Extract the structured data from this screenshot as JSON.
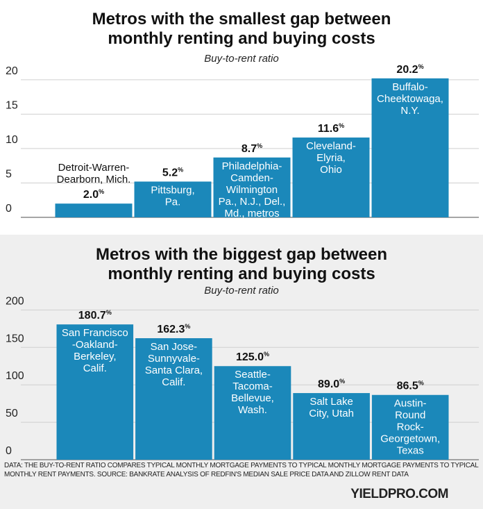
{
  "chart_data": [
    {
      "type": "bar",
      "title": "Metros with the smallest gap between monthly renting and buying costs",
      "subtitle": "Buy-to-rent ratio",
      "categories": [
        "Detroit-Warren-\nDearborn, Mich.",
        "Pittsburg,\nPa.",
        "Philadelphia-\nCamden-\nWilmington\nPa., N.J., Del.,\nMd., metros",
        "Cleveland-\nElyria,\nOhio",
        "Buffalo-\nCheektowaga,\nN.Y."
      ],
      "values": [
        2.0,
        5.2,
        8.7,
        11.6,
        20.2
      ],
      "value_labels": [
        "2.0%",
        "5.2%",
        "8.7%",
        "11.6%",
        "20.2%"
      ],
      "color": "#1b88ba",
      "ylim": [
        0,
        22
      ],
      "yticks": [
        0,
        5,
        10,
        15,
        20
      ],
      "grid": true
    },
    {
      "type": "bar",
      "title": "Metros with the biggest gap between monthly renting and buying costs",
      "subtitle": "Buy-to-rent ratio",
      "categories": [
        "San Francisco\n-Oakland-\nBerkeley,\nCalif.",
        "San Jose-\nSunnyvale-\nSanta Clara,\nCalif.",
        "Seattle-\nTacoma-\nBellevue,\nWash.",
        "Salt Lake\nCity, Utah",
        "Austin-\nRound\nRock-\nGeorgetown,\nTexas"
      ],
      "values": [
        180.7,
        162.3,
        125.0,
        89.0,
        86.5
      ],
      "value_labels": [
        "180.7%",
        "162.3%",
        "125.0%",
        "89.0%",
        "86.5%"
      ],
      "color": "#1b88ba",
      "ylim": [
        0,
        205
      ],
      "yticks": [
        0,
        50,
        100,
        150,
        200
      ],
      "grid": true
    }
  ],
  "footer": {
    "note": "DATA: THE BUY-TO-RENT RATIO COMPARES TYPICAL MONTHLY MORTGAGE PAYMENTS TO TYPICAL MONTHLY MORTGAGE PAYMENTS TO TYPICAL MONTHLY RENT PAYMENTS. SOURCE: BANKRATE ANALYSIS OF REDFIN'S MEDIAN SALE PRICE DATA AND ZILLOW RENT DATA",
    "brand": "YIELDPRO.COM"
  }
}
